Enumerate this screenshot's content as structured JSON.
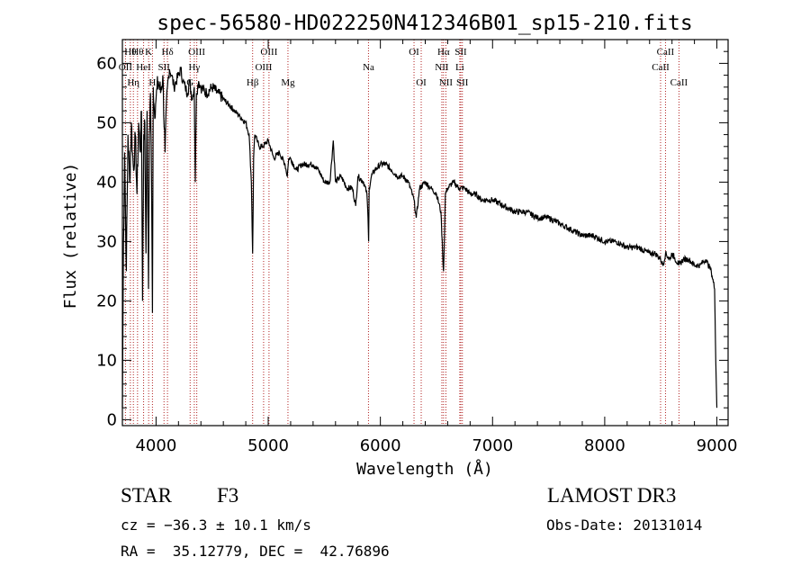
{
  "chart_data": {
    "type": "line",
    "title": "spec-56580-HD022250N412346B01_sp15-210.fits",
    "xlabel": "Wavelength (Å)",
    "ylabel": "Flux (relative)",
    "xlim": [
      3700,
      9100
    ],
    "ylim": [
      -1,
      64
    ],
    "xticks": [
      4000,
      5000,
      6000,
      7000,
      8000,
      9000
    ],
    "yticks": [
      0,
      10,
      20,
      30,
      40,
      50,
      60
    ],
    "series": [
      {
        "name": "spectrum",
        "x": [
          3700,
          3710,
          3720,
          3735,
          3750,
          3765,
          3780,
          3790,
          3800,
          3815,
          3830,
          3845,
          3860,
          3870,
          3880,
          3890,
          3900,
          3910,
          3920,
          3933,
          3940,
          3950,
          3960,
          3968,
          3975,
          3985,
          4000,
          4020,
          4040,
          4060,
          4080,
          4101,
          4120,
          4140,
          4160,
          4180,
          4200,
          4220,
          4240,
          4260,
          4280,
          4300,
          4320,
          4340,
          4350,
          4360,
          4380,
          4400,
          4450,
          4500,
          4550,
          4600,
          4650,
          4700,
          4750,
          4800,
          4830,
          4850,
          4861,
          4870,
          4880,
          4900,
          4920,
          4950,
          5000,
          5050,
          5100,
          5150,
          5170,
          5183,
          5200,
          5250,
          5300,
          5350,
          5400,
          5450,
          5500,
          5550,
          5580,
          5600,
          5650,
          5700,
          5750,
          5780,
          5800,
          5850,
          5880,
          5890,
          5895,
          5900,
          5920,
          5950,
          6000,
          6050,
          6100,
          6150,
          6200,
          6250,
          6300,
          6320,
          6350,
          6400,
          6450,
          6500,
          6540,
          6555,
          6563,
          6570,
          6580,
          6600,
          6650,
          6700,
          6750,
          6800,
          6850,
          6900,
          6950,
          7000,
          7100,
          7200,
          7300,
          7400,
          7500,
          7600,
          7700,
          7800,
          7900,
          8000,
          8100,
          8200,
          8300,
          8400,
          8450,
          8498,
          8520,
          8542,
          8580,
          8600,
          8662,
          8700,
          8750,
          8800,
          8850,
          8900,
          8950,
          8980,
          8990,
          9000
        ],
        "values": [
          2,
          30,
          45,
          25,
          48,
          40,
          50,
          45,
          42,
          48,
          38,
          50,
          45,
          52,
          20,
          48,
          50,
          28,
          52,
          22,
          48,
          55,
          40,
          18,
          56,
          52,
          54,
          57,
          55,
          58,
          45,
          56,
          59,
          58,
          56,
          57,
          58,
          59,
          57,
          56,
          55,
          57,
          54,
          56,
          40,
          55,
          57,
          56,
          55,
          56,
          55,
          54,
          53,
          52,
          51,
          50,
          48,
          40,
          28,
          44,
          48,
          47,
          46,
          46,
          47,
          44,
          45,
          43,
          41,
          44,
          44,
          42,
          43,
          43,
          43,
          42,
          40,
          40,
          47,
          40,
          41,
          39,
          39,
          36,
          41,
          40,
          38,
          34,
          30,
          39,
          41,
          42,
          43,
          43,
          42,
          41,
          41,
          40,
          37,
          34,
          39,
          40,
          39,
          38,
          35,
          28,
          25,
          30,
          38,
          39,
          40,
          39,
          39,
          38,
          38,
          37,
          37,
          37,
          36,
          35,
          35,
          34,
          34,
          33,
          32,
          31,
          31,
          30,
          30,
          29,
          29,
          28,
          28,
          27,
          26,
          28,
          27,
          28,
          26,
          27,
          27,
          26,
          26,
          27,
          25,
          22,
          10,
          2
        ]
      }
    ],
    "lines": [
      {
        "wl": 3727,
        "label": "OII",
        "row": 2
      },
      {
        "wl": 3771,
        "label": "Hθ",
        "row": 1
      },
      {
        "wl": 3798,
        "label": "Hη",
        "row": 3
      },
      {
        "wl": 3835,
        "label": "Hθ",
        "row": 1
      },
      {
        "wl": 3889,
        "label": "HeI",
        "row": 2
      },
      {
        "wl": 3934,
        "label": "K",
        "row": 1
      },
      {
        "wl": 3968,
        "label": "H",
        "row": 3
      },
      {
        "wl": 4071,
        "label": "SII",
        "row": 2
      },
      {
        "wl": 4102,
        "label": "Hδ",
        "row": 1
      },
      {
        "wl": 4304,
        "label": "G",
        "row": 3
      },
      {
        "wl": 4341,
        "label": "Hγ",
        "row": 2
      },
      {
        "wl": 4363,
        "label": "OIII",
        "row": 1
      },
      {
        "wl": 4861,
        "label": "Hβ",
        "row": 3
      },
      {
        "wl": 4959,
        "label": "OIII",
        "row": 2
      },
      {
        "wl": 5007,
        "label": "OIII",
        "row": 1
      },
      {
        "wl": 5176,
        "label": "Mg",
        "row": 3
      },
      {
        "wl": 5894,
        "label": "Na",
        "row": 2
      },
      {
        "wl": 6300,
        "label": "OI",
        "row": 1
      },
      {
        "wl": 6364,
        "label": "OI",
        "row": 3
      },
      {
        "wl": 6548,
        "label": "NII",
        "row": 2
      },
      {
        "wl": 6563,
        "label": "Hα",
        "row": 1
      },
      {
        "wl": 6584,
        "label": "NII",
        "row": 3
      },
      {
        "wl": 6708,
        "label": "Li",
        "row": 2
      },
      {
        "wl": 6717,
        "label": "SII",
        "row": 1
      },
      {
        "wl": 6731,
        "label": "SII",
        "row": 3
      },
      {
        "wl": 8498,
        "label": "CaII",
        "row": 2
      },
      {
        "wl": 8542,
        "label": "CaII",
        "row": 1
      },
      {
        "wl": 8662,
        "label": "CaII",
        "row": 3
      }
    ]
  },
  "info": {
    "class_label": "STAR",
    "subclass": "F3",
    "survey": "LAMOST DR3",
    "cz": "cz = −36.3 ± 10.1 km/s",
    "obs_date": "Obs-Date: 20131014",
    "coords": "RA =  35.12779, DEC =  42.76896"
  },
  "colors": {
    "axis": "#000000",
    "spectrum": "#000000",
    "line_markers": "#b22222"
  }
}
